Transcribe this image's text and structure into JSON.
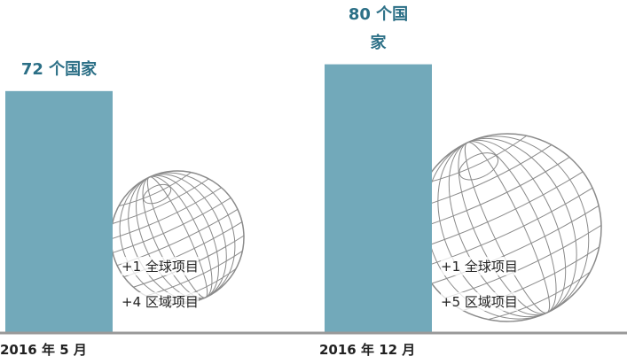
{
  "chart_data": {
    "type": "bar",
    "categories": [
      "2016 年 5 月",
      "2016 年 12 月"
    ],
    "values": [
      72,
      80
    ],
    "value_labels": [
      "72 个国家",
      "80 个国家"
    ],
    "color": "#72a9ba",
    "annotations": [
      [
        "+1 全球项目",
        "+4 区域项目"
      ],
      [
        "+1 全球项目",
        "+5 区域项目"
      ]
    ]
  }
}
